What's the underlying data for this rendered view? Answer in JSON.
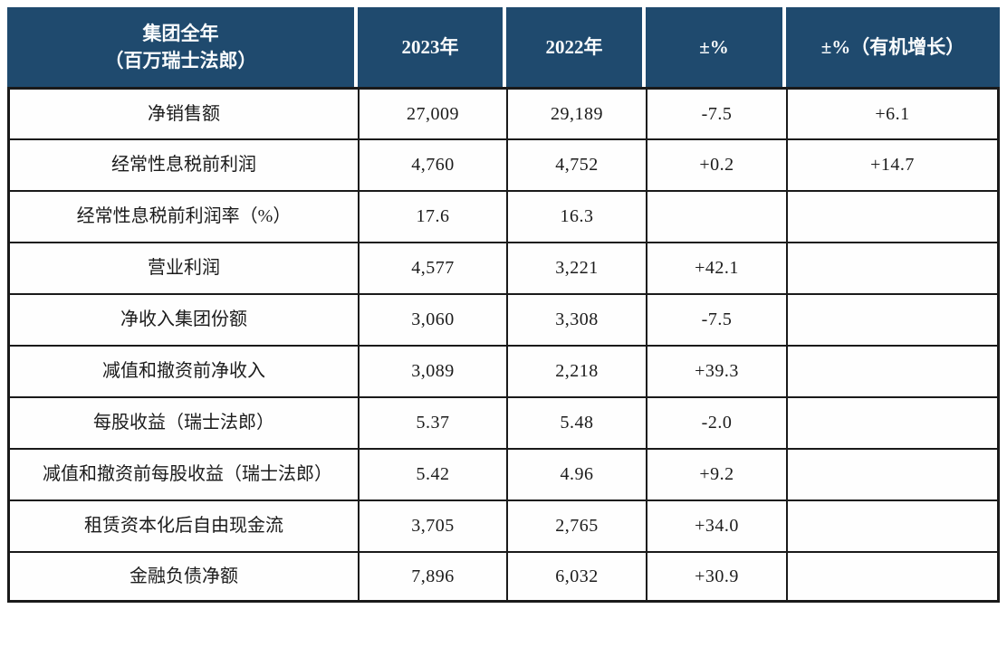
{
  "page": {
    "background": "#ffffff"
  },
  "table": {
    "colors": {
      "header_bg": "#1f4a6e",
      "header_text": "#fafcfd",
      "border": "#1a1a1a",
      "cell_bg": "#fefefe",
      "body_text": "#1b1b1b",
      "page_bg": "#ffffff"
    },
    "header": {
      "col1_line1": "集团全年",
      "col1_line2": "（百万瑞士法郎）",
      "col2": "2023年",
      "col3": "2022年",
      "col4": "±%",
      "col5": "±%（有机增长）"
    },
    "rows": [
      {
        "label": "净销售额",
        "y2023": "27,009",
        "y2022": "29,189",
        "change_pct": "-7.5",
        "organic_pct": "+6.1"
      },
      {
        "label": "经常性息税前利润",
        "y2023": "4,760",
        "y2022": "4,752",
        "change_pct": "+0.2",
        "organic_pct": "+14.7"
      },
      {
        "label": "经常性息税前利润率（%）",
        "y2023": "17.6",
        "y2022": "16.3",
        "change_pct": "",
        "organic_pct": ""
      },
      {
        "label": "营业利润",
        "y2023": "4,577",
        "y2022": "3,221",
        "change_pct": "+42.1",
        "organic_pct": ""
      },
      {
        "label": "净收入集团份额",
        "y2023": "3,060",
        "y2022": "3,308",
        "change_pct": "-7.5",
        "organic_pct": ""
      },
      {
        "label": "减值和撤资前净收入",
        "y2023": "3,089",
        "y2022": "2,218",
        "change_pct": "+39.3",
        "organic_pct": ""
      },
      {
        "label": "每股收益（瑞士法郎）",
        "y2023": "5.37",
        "y2022": "5.48",
        "change_pct": "-2.0",
        "organic_pct": ""
      },
      {
        "label": "减值和撤资前每股收益（瑞士法郎）",
        "y2023": "5.42",
        "y2022": "4.96",
        "change_pct": "+9.2",
        "organic_pct": ""
      },
      {
        "label": "租赁资本化后自由现金流",
        "y2023": "3,705",
        "y2022": "2,765",
        "change_pct": "+34.0",
        "organic_pct": ""
      },
      {
        "label": "金融负债净额",
        "y2023": "7,896",
        "y2022": "6,032",
        "change_pct": "+30.9",
        "organic_pct": ""
      }
    ]
  }
}
